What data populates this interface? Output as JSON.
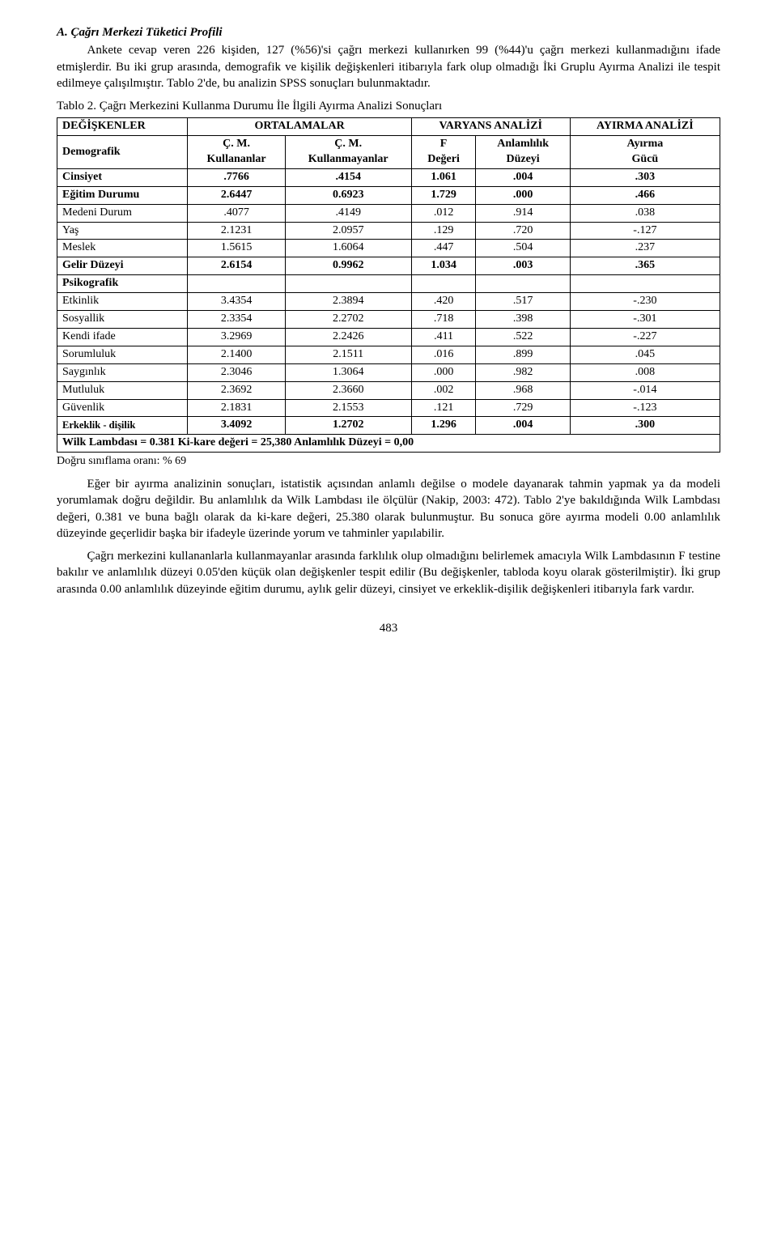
{
  "section_title": "A. Çağrı Merkezi Tüketici Profili",
  "para1": "Ankete cevap veren 226 kişiden, 127 (%56)'si çağrı merkezi kullanırken 99 (%44)'u çağrı merkezi kullanmadığını ifade etmişlerdir. Bu iki grup arasında, demografik ve kişilik değişkenleri itibarıyla fark olup olmadığı İki Gruplu Ayırma Analizi ile tespit edilmeye çalışılmıştır. Tablo 2'de, bu analizin SPSS sonuçları bulunmaktadır.",
  "table2_caption": "Tablo 2. Çağrı Merkezini Kullanma Durumu İle İlgili Ayırma Analizi Sonuçları",
  "header": {
    "c1": "DEĞİŞKENLER",
    "c2": "ORTALAMALAR",
    "c3": "VARYANS ANALİZİ",
    "c4": "AYIRMA ANALİZİ",
    "s1": "Demografik",
    "s2a": "Ç. M.",
    "s2b": "Kullananlar",
    "s3a": "Ç. M.",
    "s3b": "Kullanmayanlar",
    "s4a": "F",
    "s4b": "Değeri",
    "s5a": "Anlamlılık",
    "s5b": "Düzeyi",
    "s6a": "Ayırma",
    "s6b": "Gücü"
  },
  "group_psiko": "Psikografik",
  "rows": [
    {
      "name": "Cinsiyet",
      "a": ".7766",
      "b": ".4154",
      "f": "1.061",
      "p": ".004",
      "g": ".303",
      "bold": true
    },
    {
      "name": "Eğitim Durumu",
      "a": "2.6447",
      "b": "0.6923",
      "f": "1.729",
      "p": ".000",
      "g": ".466",
      "bold": true
    },
    {
      "name": "Medeni Durum",
      "a": ".4077",
      "b": ".4149",
      "f": ".012",
      "p": ".914",
      "g": ".038",
      "bold": false
    },
    {
      "name": "Yaş",
      "a": "2.1231",
      "b": "2.0957",
      "f": ".129",
      "p": ".720",
      "g": "-.127",
      "bold": false
    },
    {
      "name": "Meslek",
      "a": "1.5615",
      "b": "1.6064",
      "f": ".447",
      "p": ".504",
      "g": ".237",
      "bold": false
    },
    {
      "name": "Gelir Düzeyi",
      "a": "2.6154",
      "b": "0.9962",
      "f": "1.034",
      "p": ".003",
      "g": ".365",
      "bold": true
    }
  ],
  "rows2": [
    {
      "name": "Etkinlik",
      "a": "3.4354",
      "b": "2.3894",
      "f": ".420",
      "p": ".517",
      "g": "-.230",
      "bold": false
    },
    {
      "name": "Sosyallik",
      "a": "2.3354",
      "b": "2.2702",
      "f": ".718",
      "p": ".398",
      "g": "-.301",
      "bold": false
    },
    {
      "name": "Kendi ifade",
      "a": "3.2969",
      "b": "2.2426",
      "f": ".411",
      "p": ".522",
      "g": "-.227",
      "bold": false
    },
    {
      "name": "Sorumluluk",
      "a": "2.1400",
      "b": "2.1511",
      "f": ".016",
      "p": ".899",
      "g": ".045",
      "bold": false
    },
    {
      "name": "Saygınlık",
      "a": "2.3046",
      "b": "1.3064",
      "f": ".000",
      "p": ".982",
      "g": ".008",
      "bold": false
    },
    {
      "name": "Mutluluk",
      "a": "2.3692",
      "b": "2.3660",
      "f": ".002",
      "p": ".968",
      "g": "-.014",
      "bold": false
    },
    {
      "name": "Güvenlik",
      "a": "2.1831",
      "b": "2.1553",
      "f": ".121",
      "p": ".729",
      "g": "-.123",
      "bold": false
    },
    {
      "name": "Erkeklik - dişilik",
      "a": "3.4092",
      "b": "1.2702",
      "f": "1.296",
      "p": ".004",
      "g": ".300",
      "bold": true,
      "sm": true
    }
  ],
  "wilk": "Wilk Lambdası = 0.381 Ki-kare değeri = 25,380 Anlamlılık Düzeyi = 0,00",
  "note": "Doğru sınıflama oranı: % 69",
  "para2": "Eğer bir ayırma analizinin sonuçları, istatistik açısından anlamlı değilse o modele dayanarak tahmin yapmak ya da modeli yorumlamak doğru değildir. Bu anlamlılık da Wilk Lambdası ile ölçülür (Nakip, 2003: 472). Tablo 2'ye bakıldığında Wilk Lambdası değeri, 0.381 ve buna bağlı olarak da ki-kare değeri, 25.380 olarak bulunmuştur. Bu sonuca göre ayırma modeli 0.00 anlamlılık düzeyinde geçerlidir başka bir ifadeyle üzerinde yorum ve tahminler yapılabilir.",
  "para3": "Çağrı merkezini kullananlarla kullanmayanlar arasında farklılık olup olmadığını belirlemek amacıyla Wilk Lambdasının F testine bakılır ve anlamlılık düzeyi 0.05'den küçük olan değişkenler tespit edilir (Bu değişkenler, tabloda koyu olarak gösterilmiştir). İki grup arasında 0.00 anlamlılık düzeyinde eğitim durumu, aylık gelir düzeyi, cinsiyet ve erkeklik-dişilik değişkenleri itibarıyla fark vardır.",
  "page_number": "483"
}
